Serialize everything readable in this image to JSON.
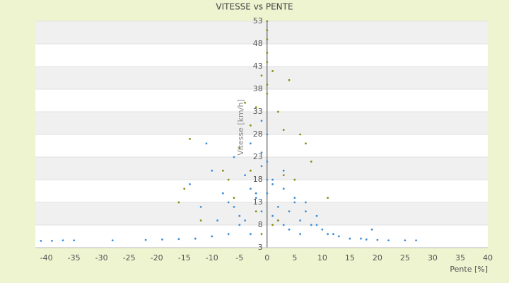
{
  "chart_data": {
    "type": "scatter",
    "title": "VITESSE vs PENTE",
    "x_label": "Pente [%]",
    "y_label": "Vitesse [km/h]",
    "xlim": [
      -42,
      40
    ],
    "xticks": [
      -40,
      -35,
      -30,
      -25,
      -20,
      -15,
      -10,
      -5,
      0,
      5,
      10,
      15,
      20,
      25,
      30,
      35,
      40
    ],
    "ylim": [
      3,
      53
    ],
    "yticks": [
      3,
      8,
      13,
      18,
      23,
      28,
      33,
      38,
      43,
      48,
      53
    ],
    "grid": true,
    "series": [
      {
        "color": "#3f8fd6",
        "x": [
          -41,
          -39,
          -37,
          -35,
          -28,
          -22,
          -19,
          -16,
          -13,
          -10,
          -7,
          13,
          15,
          17,
          18,
          20,
          22,
          25,
          27,
          -14,
          -12,
          -10,
          -8,
          -6,
          -5,
          -4,
          -3,
          -2,
          -1,
          0,
          1,
          2,
          3,
          4,
          5,
          6,
          7,
          8,
          9,
          10,
          11,
          12,
          -9,
          -7,
          -5,
          -3,
          -1,
          0,
          1,
          3,
          5,
          7,
          9,
          -6,
          -4,
          -2,
          0,
          2,
          4,
          6,
          -3,
          -1,
          0,
          1,
          3,
          19,
          -1,
          -11
        ],
        "values": [
          4.5,
          4.5,
          4.6,
          4.6,
          4.6,
          4.7,
          4.8,
          4.9,
          5,
          5.5,
          6,
          5.5,
          5,
          5,
          4.8,
          4.7,
          4.6,
          4.6,
          4.6,
          17,
          12,
          20,
          15,
          23,
          10,
          19,
          26,
          14,
          21,
          28,
          18,
          12,
          16,
          11,
          14,
          9,
          13,
          8,
          10,
          7,
          6,
          6,
          9,
          13,
          8,
          16,
          24,
          22,
          17,
          20,
          13,
          11,
          8,
          12,
          9,
          15,
          18,
          9,
          7,
          6,
          6,
          11,
          15,
          10,
          8,
          7,
          31,
          26
        ]
      },
      {
        "color": "#8c8c14",
        "x": [
          0,
          0,
          0,
          0,
          0,
          -1,
          1,
          0,
          4,
          -4,
          -2,
          2,
          -14,
          -15,
          -5,
          -3,
          3,
          6,
          -8,
          8,
          -6,
          -2,
          2,
          5,
          -16,
          -12,
          11,
          1,
          -1,
          0,
          -3,
          3,
          7,
          -7
        ],
        "values": [
          53,
          51,
          49,
          46,
          44,
          41,
          42,
          39,
          40,
          35,
          34,
          33,
          27,
          16,
          25,
          30,
          29,
          28,
          20,
          22,
          14,
          11,
          9,
          18,
          13,
          9,
          14,
          8,
          6,
          37,
          20,
          19,
          26,
          18
        ]
      }
    ]
  }
}
